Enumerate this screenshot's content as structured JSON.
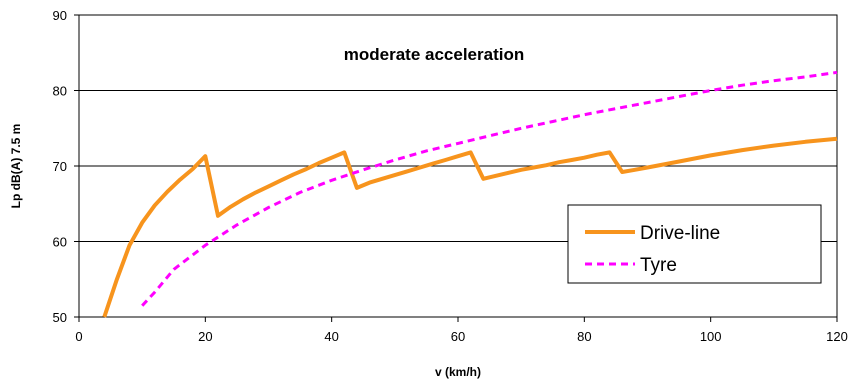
{
  "chart_data": {
    "type": "line",
    "title": "moderate acceleration",
    "xlabel": "v (km/h)",
    "ylabel": "Lp dB(A) 7.5 m",
    "xlim": [
      0,
      120
    ],
    "ylim": [
      50,
      90
    ],
    "xticks": [
      "0",
      "20",
      "40",
      "60",
      "80",
      "100",
      "120"
    ],
    "yticks": [
      "50",
      "60",
      "70",
      "80",
      "90"
    ],
    "grid": "horizontal",
    "legend_position": "bottom-right",
    "series": [
      {
        "name": "Drive-line",
        "color": "#F7941D",
        "style": "solid",
        "x": [
          4,
          5,
          6,
          8,
          10,
          12,
          14,
          16,
          18,
          20,
          22,
          24,
          26,
          28,
          30,
          32,
          34,
          36,
          38,
          40,
          42,
          44,
          46,
          48,
          50,
          52,
          54,
          56,
          58,
          60,
          62,
          64,
          66,
          68,
          70,
          72,
          74,
          76,
          78,
          80,
          82,
          84,
          86,
          88,
          90,
          95,
          100,
          105,
          110,
          115,
          120
        ],
        "y": [
          50,
          52.5,
          55,
          59.5,
          62.5,
          64.8,
          66.6,
          68.2,
          69.6,
          71.3,
          63.4,
          64.6,
          65.6,
          66.5,
          67.3,
          68.1,
          68.9,
          69.6,
          70.4,
          71.1,
          71.8,
          67.1,
          67.8,
          68.3,
          68.8,
          69.3,
          69.8,
          70.3,
          70.8,
          71.3,
          71.8,
          68.3,
          68.7,
          69.1,
          69.5,
          69.8,
          70.1,
          70.5,
          70.8,
          71.1,
          71.5,
          71.8,
          69.2,
          69.5,
          69.8,
          70.6,
          71.4,
          72.1,
          72.7,
          73.2,
          73.6
        ]
      },
      {
        "name": "Tyre",
        "color": "#FF00FF",
        "style": "dashed",
        "x": [
          10,
          12,
          15,
          20,
          25,
          30,
          35,
          40,
          45,
          50,
          55,
          60,
          65,
          70,
          75,
          80,
          85,
          90,
          95,
          100,
          105,
          110,
          115,
          120
        ],
        "y": [
          51.5,
          53.3,
          56.3,
          59.5,
          62.2,
          64.5,
          66.5,
          68.1,
          69.5,
          70.8,
          72,
          73,
          74,
          75,
          75.9,
          76.8,
          77.6,
          78.4,
          79.2,
          80,
          80.7,
          81.3,
          81.8,
          82.4
        ]
      }
    ]
  }
}
